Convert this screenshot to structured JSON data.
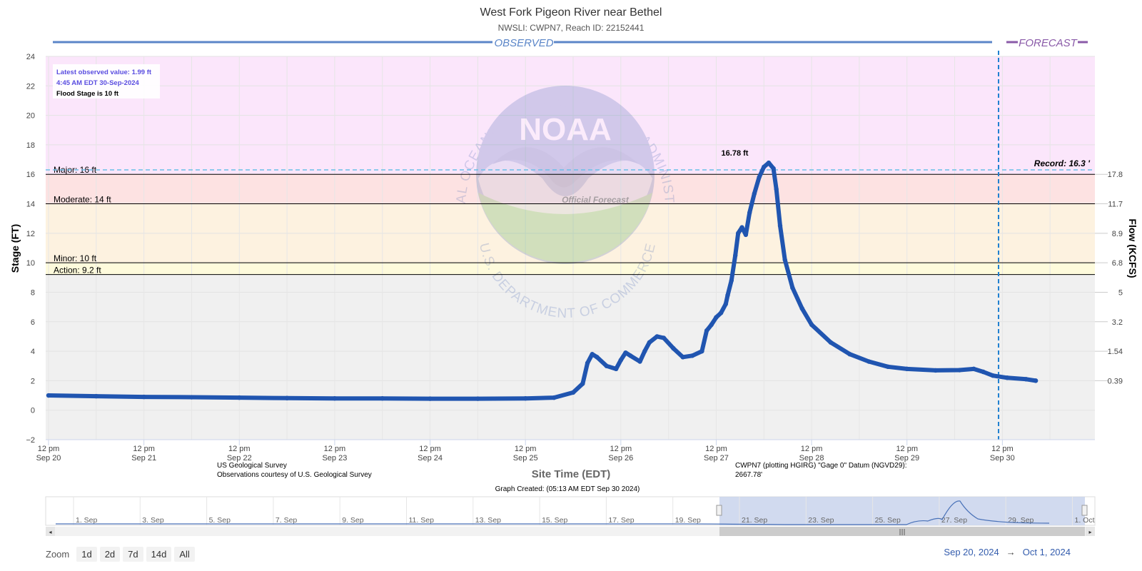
{
  "chart_data": {
    "type": "line",
    "title": "West Fork Pigeon River near Bethel",
    "subtitle": "NWSLI: CWPN7, Reach ID: 22152441",
    "xlabel": "Site Time (EDT)",
    "ylabel": "Stage (FT)",
    "ylabel_right": "Flow (KCFS)",
    "ylim": [
      -2,
      24
    ],
    "yticks": [
      "−2",
      "0",
      "2",
      "4",
      "6",
      "8",
      "10",
      "12",
      "14",
      "16",
      "18",
      "20",
      "22",
      "24"
    ],
    "flow_ticks": [
      {
        "stage": 2,
        "label": "0.39"
      },
      {
        "stage": 4,
        "label": "1.54"
      },
      {
        "stage": 6,
        "label": "3.2"
      },
      {
        "stage": 8,
        "label": "5"
      },
      {
        "stage": 10,
        "label": "6.8"
      },
      {
        "stage": 12,
        "label": "8.9"
      },
      {
        "stage": 14,
        "label": "11.7"
      },
      {
        "stage": 16,
        "label": "17.8"
      }
    ],
    "xticks": [
      {
        "day": 0,
        "line1": "12 pm",
        "line2": "Sep 20"
      },
      {
        "day": 1,
        "line1": "12 pm",
        "line2": "Sep 21"
      },
      {
        "day": 2,
        "line1": "12 pm",
        "line2": "Sep 22"
      },
      {
        "day": 3,
        "line1": "12 pm",
        "line2": "Sep 23"
      },
      {
        "day": 4,
        "line1": "12 pm",
        "line2": "Sep 24"
      },
      {
        "day": 5,
        "line1": "12 pm",
        "line2": "Sep 25"
      },
      {
        "day": 6,
        "line1": "12 pm",
        "line2": "Sep 26"
      },
      {
        "day": 7,
        "line1": "12 pm",
        "line2": "Sep 27"
      },
      {
        "day": 8,
        "line1": "12 pm",
        "line2": "Sep 28"
      },
      {
        "day": 9,
        "line1": "12 pm",
        "line2": "Sep 29"
      },
      {
        "day": 10,
        "line1": "12 pm",
        "line2": "Sep 30"
      }
    ],
    "xlim_days": [
      -0.03,
      10.97
    ],
    "bands": [
      {
        "from": 16,
        "to": 24,
        "color": "#fbe6fb"
      },
      {
        "from": 14,
        "to": 16,
        "color": "#fde2e2"
      },
      {
        "from": 10,
        "to": 14,
        "color": "#fdf2e0"
      },
      {
        "from": 9.2,
        "to": 10,
        "color": "#fefbdc"
      },
      {
        "from": -2,
        "to": 9.2,
        "color": "#f0f0f0"
      }
    ],
    "thresholds": [
      {
        "value": 16,
        "label": "Major: 16 ft"
      },
      {
        "value": 14,
        "label": "Moderate: 14 ft"
      },
      {
        "value": 10,
        "label": "Minor: 10 ft"
      },
      {
        "value": 9.2,
        "label": "Action: 9.2 ft"
      }
    ],
    "record": {
      "value": 16.3,
      "label": "Record: 16.3 '"
    },
    "peak": {
      "day": 7.18,
      "value": 16.78,
      "label": "16.78 ft"
    },
    "forecast_start_day": 9.96,
    "series": [
      {
        "color": "#2055b0",
        "points": [
          [
            0,
            1.0
          ],
          [
            0.5,
            0.95
          ],
          [
            1,
            0.9
          ],
          [
            1.5,
            0.88
          ],
          [
            2,
            0.85
          ],
          [
            2.5,
            0.82
          ],
          [
            3,
            0.8
          ],
          [
            3.5,
            0.8
          ],
          [
            4,
            0.78
          ],
          [
            4.5,
            0.78
          ],
          [
            5,
            0.8
          ],
          [
            5.3,
            0.85
          ],
          [
            5.5,
            1.2
          ],
          [
            5.6,
            1.8
          ],
          [
            5.65,
            3.2
          ],
          [
            5.7,
            3.8
          ],
          [
            5.75,
            3.6
          ],
          [
            5.85,
            3.0
          ],
          [
            5.95,
            2.8
          ],
          [
            6.0,
            3.4
          ],
          [
            6.05,
            3.9
          ],
          [
            6.1,
            3.7
          ],
          [
            6.2,
            3.3
          ],
          [
            6.25,
            4.0
          ],
          [
            6.3,
            4.6
          ],
          [
            6.38,
            5.0
          ],
          [
            6.45,
            4.9
          ],
          [
            6.55,
            4.2
          ],
          [
            6.65,
            3.6
          ],
          [
            6.75,
            3.7
          ],
          [
            6.85,
            4.0
          ],
          [
            6.9,
            5.4
          ],
          [
            6.95,
            5.8
          ],
          [
            7.0,
            6.3
          ],
          [
            7.05,
            6.6
          ],
          [
            7.1,
            7.2
          ],
          [
            7.12,
            7.8
          ],
          [
            7.16,
            8.8
          ],
          [
            7.2,
            10.5
          ],
          [
            7.23,
            12.0
          ],
          [
            7.27,
            12.4
          ],
          [
            7.31,
            11.9
          ],
          [
            7.35,
            13.4
          ],
          [
            7.4,
            14.7
          ],
          [
            7.45,
            15.8
          ],
          [
            7.5,
            16.5
          ],
          [
            7.55,
            16.78
          ],
          [
            7.6,
            16.4
          ],
          [
            7.63,
            15.0
          ],
          [
            7.67,
            12.5
          ],
          [
            7.72,
            10.2
          ],
          [
            7.8,
            8.3
          ],
          [
            7.9,
            6.9
          ],
          [
            8.0,
            5.8
          ],
          [
            8.2,
            4.6
          ],
          [
            8.4,
            3.8
          ],
          [
            8.6,
            3.3
          ],
          [
            8.8,
            2.95
          ],
          [
            9.0,
            2.8
          ],
          [
            9.3,
            2.7
          ],
          [
            9.55,
            2.72
          ],
          [
            9.7,
            2.8
          ],
          [
            9.8,
            2.6
          ],
          [
            9.9,
            2.35
          ],
          [
            10.05,
            2.2
          ],
          [
            10.25,
            2.1
          ],
          [
            10.35,
            2.0
          ]
        ]
      }
    ],
    "info_box": {
      "latest": "Latest observed value: 1.99 ft",
      "time": "4:45 AM EDT 30-Sep-2024",
      "flood": "Flood Stage is 10 ft"
    },
    "observed_label": "OBSERVED",
    "forecast_label": "FORECAST",
    "watermark": {
      "logo": "NOAA",
      "top": "NATIONAL OCEANIC AND ATMOSPHERIC ADMINISTRATION",
      "bottom": "U.S. DEPARTMENT OF COMMERCE",
      "stamp": "Official Forecast"
    },
    "credits": {
      "left1": "US Geological Survey",
      "left2": "Observations courtesy of U.S. Geological Survey",
      "right1": "CWPN7 (plotting HGIRG) \"Gage 0\" Datum (NGVD29):",
      "right2": "2667.78'",
      "created": "Graph Created: (05:13 AM EDT Sep 30 2024)"
    },
    "navigator": {
      "labels": [
        "1. Sep",
        "3. Sep",
        "5. Sep",
        "7. Sep",
        "9. Sep",
        "11. Sep",
        "13. Sep",
        "15. Sep",
        "17. Sep",
        "19. Sep",
        "21. Sep",
        "23. Sep",
        "25. Sep",
        "27. Sep",
        "29. Sep",
        "1. Oct"
      ]
    }
  },
  "zoom": {
    "label": "Zoom",
    "buttons": [
      "1d",
      "2d",
      "7d",
      "14d",
      "All"
    ]
  },
  "range": {
    "from": "Sep 20, 2024",
    "arrow": "→",
    "to": "Oct 1, 2024"
  }
}
